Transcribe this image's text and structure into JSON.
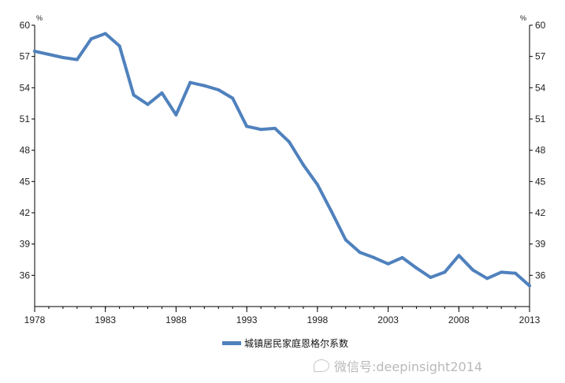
{
  "chart_data": {
    "type": "line",
    "title": "",
    "xlabel": "",
    "ylabel_left": "%",
    "ylabel_right": "%",
    "xlim": [
      1978,
      2013
    ],
    "ylim": [
      33,
      60
    ],
    "x_ticks": [
      "1978",
      "1983",
      "1988",
      "1993",
      "1998",
      "2003",
      "2008",
      "2013"
    ],
    "y_ticks": [
      "36",
      "39",
      "42",
      "45",
      "48",
      "51",
      "54",
      "57",
      "60"
    ],
    "grid": false,
    "legend_position": "bottom-center",
    "series": [
      {
        "name": "城镇居民家庭恩格尔系数",
        "color": "#4f81bd",
        "x": [
          1978,
          1979,
          1980,
          1981,
          1982,
          1983,
          1984,
          1985,
          1986,
          1987,
          1988,
          1989,
          1990,
          1991,
          1992,
          1993,
          1994,
          1995,
          1996,
          1997,
          1998,
          1999,
          2000,
          2001,
          2002,
          2003,
          2004,
          2005,
          2006,
          2007,
          2008,
          2009,
          2010,
          2011,
          2012,
          2013
        ],
        "values": [
          57.5,
          57.2,
          56.9,
          56.7,
          58.7,
          59.2,
          58.0,
          53.3,
          52.4,
          53.5,
          51.4,
          54.5,
          54.2,
          53.8,
          53.0,
          50.3,
          50.0,
          50.1,
          48.8,
          46.6,
          44.7,
          42.1,
          39.4,
          38.2,
          37.7,
          37.1,
          37.7,
          36.7,
          35.8,
          36.3,
          37.9,
          36.5,
          35.7,
          36.3,
          36.2,
          35.0
        ]
      }
    ]
  },
  "watermark": {
    "icon": "wechat-icon",
    "text": "微信号:deepinsight2014"
  }
}
